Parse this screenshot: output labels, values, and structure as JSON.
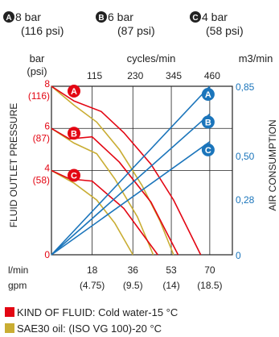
{
  "presets": [
    {
      "letter": "A",
      "bar": "8 bar",
      "psi": "(116 psi)"
    },
    {
      "letter": "B",
      "bar": "6 bar",
      "psi": "(87 psi)"
    },
    {
      "letter": "C",
      "bar": "4 bar",
      "psi": "(58 psi)"
    }
  ],
  "axes": {
    "left_unit_line1": "bar",
    "left_unit_line2": "(psi)",
    "top_unit": "cycles/min",
    "right_unit": "m3/min",
    "left_title": "FLUID OUTLET PRESSURE",
    "right_title": "AIR CONSUMPTION",
    "bottom_unit_line1": "l/min",
    "bottom_unit_line2": "gpm"
  },
  "legend": [
    {
      "label": "KIND OF FLUID: Cold water-15 °C",
      "color": "#e30613"
    },
    {
      "label": "SAE30 oil: (ISO VG 100)-20 °C",
      "color": "#c9ad33"
    }
  ],
  "colors": {
    "water": "#e30613",
    "oil": "#c9ad33",
    "air": "#1b75bb",
    "badge_water": "#e30613",
    "badge_air": "#1b75bb",
    "badge_title": "#222222"
  },
  "chart_data": {
    "type": "line",
    "x_lpm": {
      "range": [
        0,
        80
      ],
      "ticks": [
        18,
        36,
        53,
        70
      ],
      "tick_labels": [
        "18",
        "36",
        "53",
        "70"
      ],
      "sub_labels": [
        "(4.75)",
        "(9.5)",
        "(14)",
        "(18.5)"
      ]
    },
    "x_cycles": {
      "range": [
        0,
        80
      ],
      "ticks": [
        18,
        36,
        53,
        70
      ],
      "tick_labels": [
        "115",
        "230",
        "345",
        "460"
      ]
    },
    "y_pressure": {
      "range": [
        0,
        8
      ],
      "ticks": [
        0,
        4,
        6,
        8
      ],
      "tick_labels": [
        "0",
        "4",
        "6",
        "8"
      ],
      "sub_labels": [
        "",
        "(58)",
        "(87)",
        "(116)"
      ]
    },
    "y_air": {
      "range": [
        0,
        0.85
      ],
      "ticks": [
        0,
        0.28,
        0.5,
        0.85
      ],
      "tick_labels": [
        "0",
        "0,28",
        "0,50",
        "0,85"
      ]
    },
    "water_series": [
      {
        "name": "A",
        "points": [
          [
            0,
            8
          ],
          [
            10,
            7.3
          ],
          [
            22,
            6.8
          ],
          [
            32,
            5.8
          ],
          [
            44,
            4.3
          ],
          [
            54,
            2.6
          ],
          [
            66,
            0
          ]
        ]
      },
      {
        "name": "B",
        "points": [
          [
            0,
            6
          ],
          [
            8,
            5.5
          ],
          [
            18,
            5.6
          ],
          [
            30,
            4.4
          ],
          [
            44,
            2.5
          ],
          [
            56,
            0
          ]
        ]
      },
      {
        "name": "C",
        "points": [
          [
            0,
            4
          ],
          [
            8,
            3.6
          ],
          [
            18,
            3.5
          ],
          [
            32,
            2.2
          ],
          [
            47,
            0
          ]
        ]
      }
    ],
    "oil_series": [
      {
        "name": "A",
        "points": [
          [
            0,
            8
          ],
          [
            10,
            7.1
          ],
          [
            20,
            6.3
          ],
          [
            30,
            5.0
          ],
          [
            40,
            3.3
          ],
          [
            48,
            1.6
          ],
          [
            54,
            0
          ]
        ]
      },
      {
        "name": "B",
        "points": [
          [
            0,
            6
          ],
          [
            10,
            5.3
          ],
          [
            20,
            4.8
          ],
          [
            28,
            3.6
          ],
          [
            38,
            1.8
          ],
          [
            45,
            0
          ]
        ]
      },
      {
        "name": "C",
        "points": [
          [
            0,
            4
          ],
          [
            10,
            3.4
          ],
          [
            20,
            2.6
          ],
          [
            28,
            1.5
          ],
          [
            36,
            0
          ]
        ]
      }
    ],
    "air_series": [
      {
        "name": "A",
        "points": [
          [
            0,
            0
          ],
          [
            70,
            0.85
          ]
        ]
      },
      {
        "name": "B",
        "points": [
          [
            0,
            0
          ],
          [
            70,
            0.71
          ]
        ]
      },
      {
        "name": "C",
        "points": [
          [
            0,
            0
          ],
          [
            70,
            0.57
          ]
        ]
      }
    ]
  }
}
